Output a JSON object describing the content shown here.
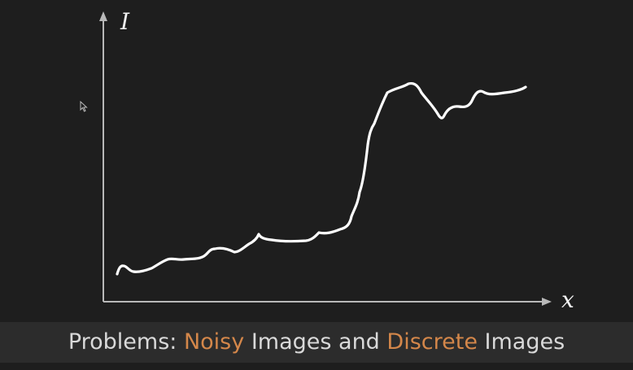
{
  "axes": {
    "y_label": "I",
    "x_label": "x"
  },
  "caption": {
    "part1": "Problems: ",
    "part2": "Noisy",
    "part3": " Images and ",
    "part4": "Discrete",
    "part5": " Images"
  },
  "colors": {
    "background": "#1e1e1e",
    "axis": "#b8b8b8",
    "curve": "#ffffff",
    "accent": "#d4874a",
    "caption_background": "#2c2c2c",
    "caption_text": "#d9d9d9"
  },
  "icons": {
    "cursor": "mouse-pointer-icon"
  }
}
